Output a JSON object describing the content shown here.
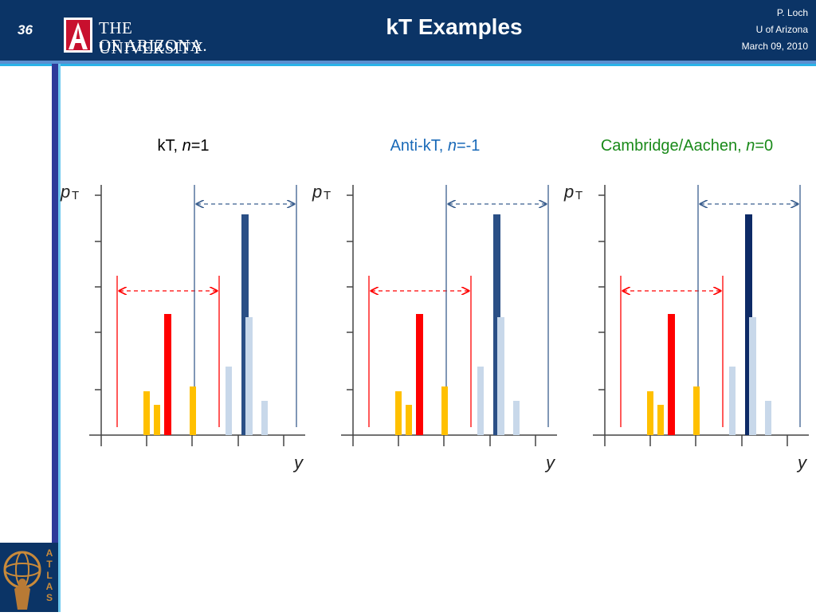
{
  "header": {
    "slide_number": "36",
    "logo_line1": "THE UNIVERSITY",
    "logo_line2": "OF ARIZONA.",
    "title": "kT Examples",
    "author": "P. Loch",
    "affiliation": "U of Arizona",
    "date": "March 09, 2010"
  },
  "panels": [
    {
      "name": "kT",
      "label_prefix": "kT, ",
      "label_var": "n",
      "label_suffix": "=1",
      "color": "#000000",
      "tall_bar_color": "#2a4f86"
    },
    {
      "name": "anti-kT",
      "label_prefix": "Anti-kT, ",
      "label_var": "n",
      "label_suffix": "=-1",
      "color": "#1a6ab8",
      "tall_bar_color": "#2a4f86"
    },
    {
      "name": "cambridge-aachen",
      "label_prefix": "Cambridge/Aachen, ",
      "label_var": "n",
      "label_suffix": "=0",
      "color": "#1a8a1a",
      "tall_bar_color": "#0d2a66"
    }
  ],
  "axis_labels": {
    "y_axis": "p",
    "y_axis_sub": "T",
    "x_axis": "y"
  },
  "colors": {
    "header_bg": "#0b3466",
    "red": "#ff0000",
    "orange": "#ffc000",
    "light_blue": "#c8d8ea",
    "blue_line": "#3b5f8f",
    "red_line": "#ff0000"
  },
  "logo_letter": "A",
  "atlas_text": "ATLAS"
}
